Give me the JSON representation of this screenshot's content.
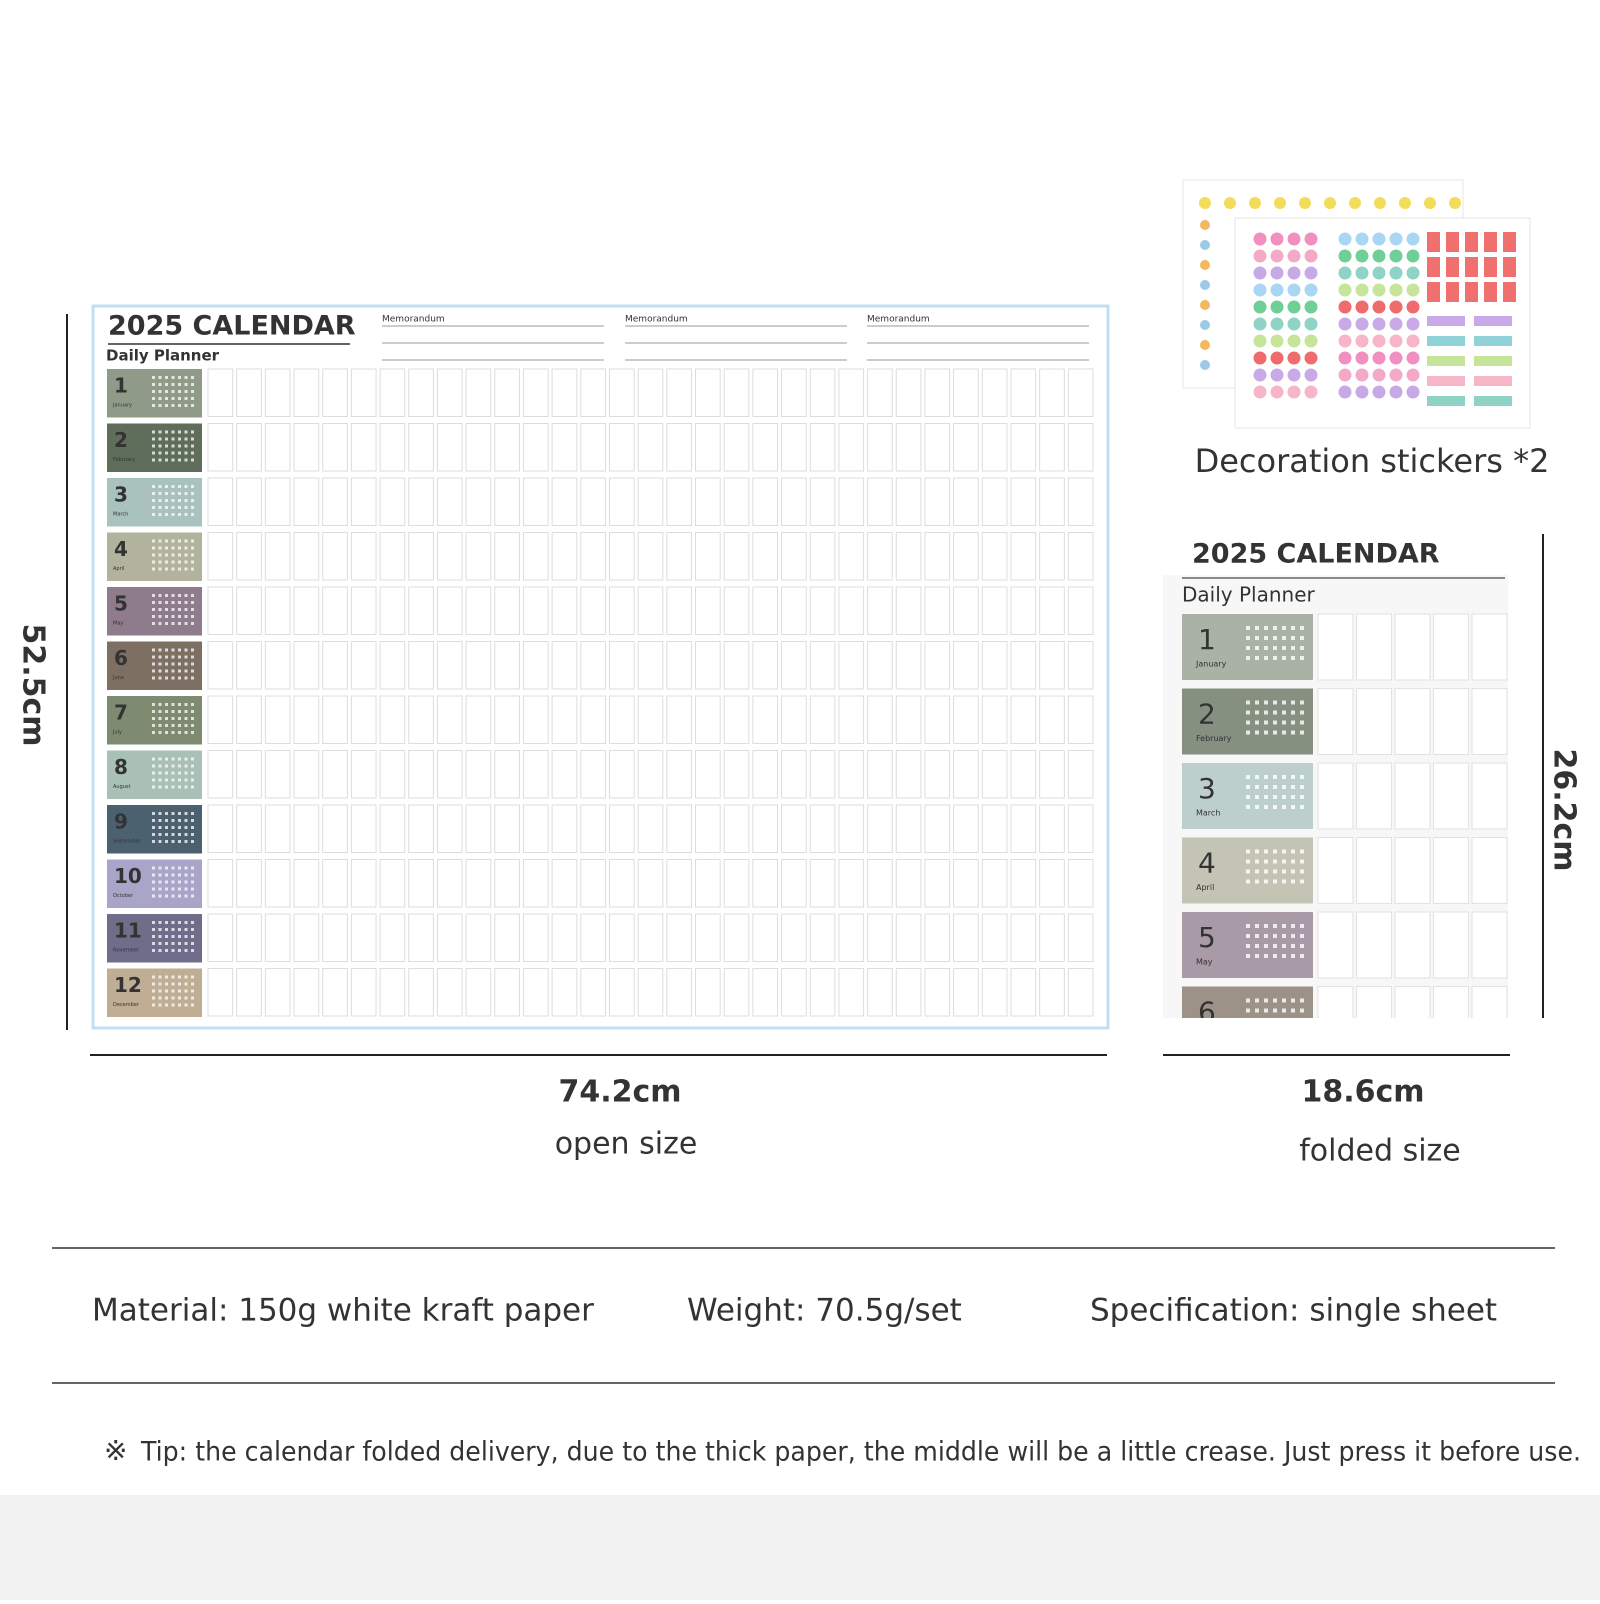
{
  "calendar": {
    "title": "2025 CALENDAR",
    "subtitle": "Daily Planner",
    "memo_labels": [
      "Memorandum",
      "Memorandum",
      "Memorandum"
    ],
    "months": [
      {
        "number": "1",
        "name": "January",
        "color": "#8f9b88"
      },
      {
        "number": "2",
        "name": "February",
        "color": "#5f6e5a"
      },
      {
        "number": "3",
        "name": "March",
        "color": "#a9c2bd"
      },
      {
        "number": "4",
        "name": "April",
        "color": "#b2b39c"
      },
      {
        "number": "5",
        "name": "May",
        "color": "#8e7b8c"
      },
      {
        "number": "6",
        "name": "June",
        "color": "#7d7063"
      },
      {
        "number": "7",
        "name": "July",
        "color": "#7f8b70"
      },
      {
        "number": "8",
        "name": "August",
        "color": "#a8c0b5"
      },
      {
        "number": "9",
        "name": "September",
        "color": "#4c6170"
      },
      {
        "number": "10",
        "name": "October",
        "color": "#a9a5c8"
      },
      {
        "number": "11",
        "name": "November",
        "color": "#6f6d8a"
      },
      {
        "number": "12",
        "name": "December",
        "color": "#bfae93"
      }
    ]
  },
  "stickers": {
    "caption": "Decoration stickers *2"
  },
  "folded": {
    "title": "2025 CALENDAR",
    "subtitle": "Daily Planner"
  },
  "dimensions": {
    "open_height": "52.5cm",
    "open_width": "74.2cm",
    "open_label": "open size",
    "folded_width": "18.6cm",
    "folded_label": "folded size",
    "folded_height": "26.2cm"
  },
  "specs": [
    "Material: 150g white kraft paper",
    "Weight: 70.5g/set",
    "Specification: single sheet"
  ],
  "tip": {
    "mark": "※",
    "text": "Tip: the calendar folded delivery, due to the thick paper, the middle will be a little crease. Just press it before use."
  }
}
